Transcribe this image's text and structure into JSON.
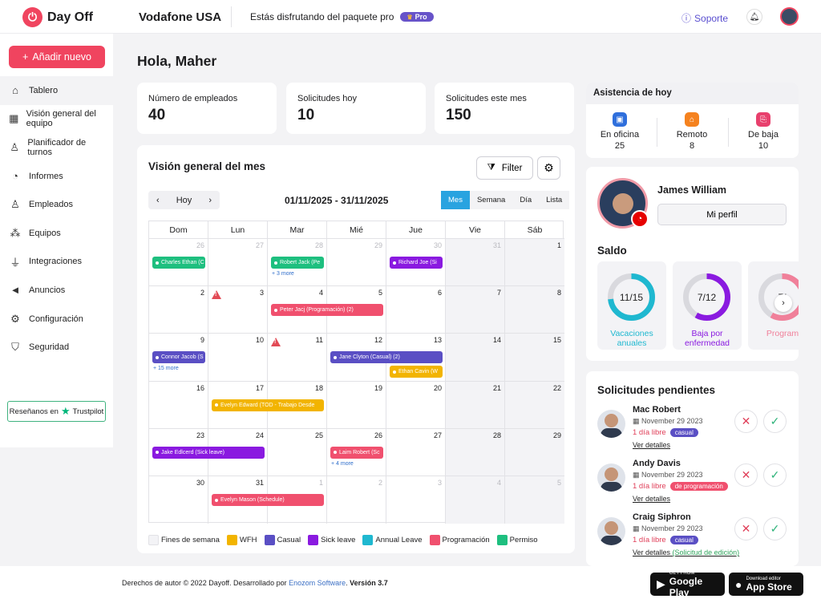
{
  "app": {
    "name": "Day Off",
    "company": "Vodafone USA",
    "package_text": "Estás disfrutando del paquete pro",
    "pro_badge": "Pro",
    "support": "Soporte"
  },
  "colors": {
    "accent": "#f0445f",
    "calendar_tab": "#29a3e0",
    "wfh": "#f2b400",
    "casual": "#5a4fc4",
    "sick": "#8a1ae0",
    "annual": "#1fb8d0",
    "programacion": "#f0506e",
    "permiso": "#1ebf7f",
    "weekend": "#f3f3f6"
  },
  "sidebar": {
    "add_button": "Añadir nuevo",
    "items": [
      {
        "label": "Tablero",
        "icon": "home-icon"
      },
      {
        "label": "Visión general del equipo",
        "icon": "calendar-icon"
      },
      {
        "label": "Planificador de turnos",
        "icon": "user-clock-icon"
      },
      {
        "label": "Informes",
        "icon": "pie-chart-icon"
      },
      {
        "label": "Empleados",
        "icon": "user-icon"
      },
      {
        "label": "Equipos",
        "icon": "team-icon"
      },
      {
        "label": "Integraciones",
        "icon": "plug-icon"
      },
      {
        "label": "Anuncios",
        "icon": "megaphone-icon"
      },
      {
        "label": "Configuración",
        "icon": "gear-icon"
      },
      {
        "label": "Seguridad",
        "icon": "shield-icon"
      }
    ],
    "trustpilot": "Reseñanos en",
    "trustpilot_brand": "Trustpilot"
  },
  "greeting": "Hola, Maher",
  "stats": [
    {
      "label": "Número de empleados",
      "value": "40"
    },
    {
      "label": "Solicitudes hoy",
      "value": "10"
    },
    {
      "label": "Solicitudes este mes",
      "value": "150"
    }
  ],
  "calendar": {
    "title": "Visión general del mes",
    "filter": "Filter",
    "today": "Hoy",
    "range": "01/11/2025 - 31/11/2025",
    "views": [
      "Mes",
      "Semana",
      "Día",
      "Lista"
    ],
    "weekdays": [
      "Dom",
      "Lun",
      "Mar",
      "Mié",
      "Jue",
      "Vie",
      "Sáb"
    ],
    "weeks": [
      [
        "26",
        "27",
        "28",
        "29",
        "30",
        "31",
        "1"
      ],
      [
        "2",
        "3",
        "4",
        "5",
        "6",
        "7",
        "8"
      ],
      [
        "9",
        "10",
        "11",
        "12",
        "13",
        "14",
        "15"
      ],
      [
        "16",
        "17",
        "18",
        "19",
        "20",
        "21",
        "22"
      ],
      [
        "23",
        "24",
        "25",
        "26",
        "27",
        "28",
        "29"
      ],
      [
        "30",
        "31",
        "1",
        "2",
        "3",
        "4",
        "5"
      ]
    ],
    "events": [
      {
        "label": "Charles Ethan (C",
        "row": 0,
        "col": 0,
        "span": 1,
        "slot": 0,
        "type": "permiso"
      },
      {
        "label": "Robert Jack (Pe",
        "row": 0,
        "col": 2,
        "span": 1,
        "slot": 0,
        "type": "permiso"
      },
      {
        "label": "Richard Joe (Si",
        "row": 0,
        "col": 4,
        "span": 1,
        "slot": 0,
        "type": "sick"
      },
      {
        "label": "Peter Jacj (Programación) (2)",
        "row": 1,
        "col": 2,
        "span": 2,
        "slot": 0,
        "type": "programacion"
      },
      {
        "label": "Connor Jacob (S",
        "row": 2,
        "col": 0,
        "span": 1,
        "slot": 0,
        "type": "casual"
      },
      {
        "label": "Jane Clyton (Casual) (2)",
        "row": 2,
        "col": 3,
        "span": 2,
        "slot": 0,
        "type": "casual"
      },
      {
        "label": "Ethan Cavin (W",
        "row": 2,
        "col": 4,
        "span": 1,
        "slot": 1,
        "type": "wfh"
      },
      {
        "label": "Evelyn Edward (TOD - Trabajo Desde",
        "row": 3,
        "col": 1,
        "span": 2,
        "slot": 0,
        "type": "wfh"
      },
      {
        "label": "Jake Edlcerd (Sick leave)",
        "row": 4,
        "col": 0,
        "span": 2,
        "slot": 0,
        "type": "sick"
      },
      {
        "label": "Laim Robert (Sc",
        "row": 4,
        "col": 3,
        "span": 1,
        "slot": 0,
        "type": "programacion"
      },
      {
        "label": "Evelyn Mason (Schedule)",
        "row": 5,
        "col": 1,
        "span": 2,
        "slot": 0,
        "type": "programacion"
      }
    ],
    "more": [
      {
        "label": "+ 3 more",
        "row": 0,
        "col": 2
      },
      {
        "label": "+ 15 more",
        "row": 2,
        "col": 0
      },
      {
        "label": "+ 4 more",
        "row": 4,
        "col": 3
      }
    ],
    "warnings": [
      {
        "row": 1,
        "col": 1
      },
      {
        "row": 2,
        "col": 2
      }
    ],
    "legend": [
      {
        "label": "Fines de semana",
        "color": "#f3f3f6"
      },
      {
        "label": "WFH",
        "color": "#f2b400"
      },
      {
        "label": "Casual",
        "color": "#5a4fc4"
      },
      {
        "label": "Sick leave",
        "color": "#8a1ae0"
      },
      {
        "label": "Annual Leave",
        "color": "#1fb8d0"
      },
      {
        "label": "Programación",
        "color": "#f0506e"
      },
      {
        "label": "Permiso",
        "color": "#1ebf7f"
      }
    ]
  },
  "attendance": {
    "title": "Asistencia de hoy",
    "items": [
      {
        "label": "En oficina",
        "value": "25",
        "icon": "building-icon",
        "color": "#2f6fdc"
      },
      {
        "label": "Remoto",
        "value": "8",
        "icon": "home-icon",
        "color": "#f5821f"
      },
      {
        "label": "De baja",
        "value": "10",
        "icon": "leave-icon",
        "color": "#e8406d"
      }
    ]
  },
  "profile": {
    "name": "James William",
    "button": "Mi perfil"
  },
  "saldo": {
    "title": "Saldo",
    "cards": [
      {
        "value": "11/15",
        "label": "Vacaciones anuales",
        "used": 11,
        "total": 15,
        "color": "#1fb8d0"
      },
      {
        "value": "7/12",
        "label": "Baja por enfermedad",
        "used": 7,
        "total": 12,
        "color": "#8a1ae0"
      },
      {
        "value": "7/",
        "label": "Program",
        "used": 7,
        "total": 12,
        "color": "#f0809a"
      }
    ]
  },
  "pending": {
    "title": "Solicitudes pendientes",
    "requests": [
      {
        "name": "Mac Robert",
        "date": "November 29 2023",
        "days": "1 día libre",
        "tag": "casual",
        "tag_color": "#5a4fc4",
        "link": "Ver detalles",
        "extra": ""
      },
      {
        "name": "Andy Davis",
        "date": "November 29 2023",
        "days": "1 día libre",
        "tag": "de programación",
        "tag_color": "#f0506e",
        "link": "Ver detalles",
        "extra": ""
      },
      {
        "name": "Craig Siphron",
        "date": "November 29 2023",
        "days": "1 día libre",
        "tag": "casual",
        "tag_color": "#5a4fc4",
        "link": "Ver detalles",
        "extra": "(Solicitud de edición)"
      }
    ]
  },
  "footer": {
    "copyright": "Derechos de autor © 2022 Dayoff. Desarrollado por",
    "company": "Enozom Software",
    "version": "Versión 3.7",
    "google_small": "GET FROM",
    "google_big": "Google Play",
    "apple_small": "Download editor",
    "apple_big": "App Store"
  }
}
